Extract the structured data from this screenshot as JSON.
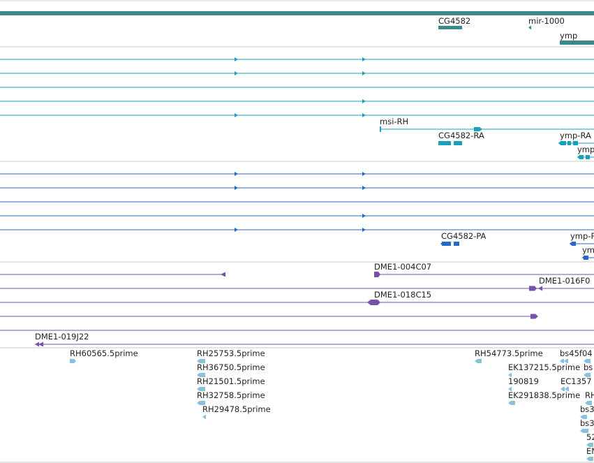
{
  "colors": {
    "gene": "#3a8a8c",
    "transcript_rna": "#1c9fbd",
    "transcript_protein": "#2667c8",
    "clone": "#7552a8",
    "est": "#89c0dd",
    "divider": "#c8c8c8"
  },
  "tracks": {
    "genes": {
      "labels": [
        "CG4582",
        "mir-1000",
        "ymp"
      ]
    },
    "rna": {
      "labels": [
        "msi-RH",
        "CG4582-RA",
        "ymp-RA",
        "ymp"
      ]
    },
    "protein": {
      "labels": [
        "CG4582-PA",
        "ymp-P",
        "ym"
      ]
    },
    "clones": {
      "labels": [
        "DME1-004C07",
        "DME1-016F0",
        "DME1-018C15",
        "DME1-019J22"
      ]
    },
    "ests": {
      "labels": [
        "RH60565.5prime",
        "RH25753.5prime",
        "RH36750.5prime",
        "RH21501.5prime",
        "RH32758.5prime",
        "RH29478.5prime",
        "RH54773.5prime",
        "EK137215.5prime",
        "bs45f04",
        "bs",
        "190819",
        "EC1357",
        "EK291838.5prime",
        "RH",
        "bs3",
        "bs3",
        "52",
        "EN"
      ]
    }
  }
}
